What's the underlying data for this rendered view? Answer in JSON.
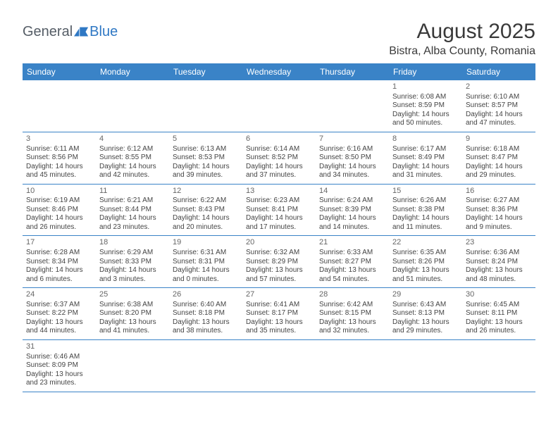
{
  "logo": {
    "text1": "General",
    "text2": "Blue"
  },
  "title": "August 2025",
  "location": "Bistra, Alba County, Romania",
  "header_bg": "#3a83c7",
  "day_names": [
    "Sunday",
    "Monday",
    "Tuesday",
    "Wednesday",
    "Thursday",
    "Friday",
    "Saturday"
  ],
  "weeks": [
    [
      null,
      null,
      null,
      null,
      null,
      {
        "d": "1",
        "sr": "6:08 AM",
        "ss": "8:59 PM",
        "dl": "14 hours and 50 minutes."
      },
      {
        "d": "2",
        "sr": "6:10 AM",
        "ss": "8:57 PM",
        "dl": "14 hours and 47 minutes."
      }
    ],
    [
      {
        "d": "3",
        "sr": "6:11 AM",
        "ss": "8:56 PM",
        "dl": "14 hours and 45 minutes."
      },
      {
        "d": "4",
        "sr": "6:12 AM",
        "ss": "8:55 PM",
        "dl": "14 hours and 42 minutes."
      },
      {
        "d": "5",
        "sr": "6:13 AM",
        "ss": "8:53 PM",
        "dl": "14 hours and 39 minutes."
      },
      {
        "d": "6",
        "sr": "6:14 AM",
        "ss": "8:52 PM",
        "dl": "14 hours and 37 minutes."
      },
      {
        "d": "7",
        "sr": "6:16 AM",
        "ss": "8:50 PM",
        "dl": "14 hours and 34 minutes."
      },
      {
        "d": "8",
        "sr": "6:17 AM",
        "ss": "8:49 PM",
        "dl": "14 hours and 31 minutes."
      },
      {
        "d": "9",
        "sr": "6:18 AM",
        "ss": "8:47 PM",
        "dl": "14 hours and 29 minutes."
      }
    ],
    [
      {
        "d": "10",
        "sr": "6:19 AM",
        "ss": "8:46 PM",
        "dl": "14 hours and 26 minutes."
      },
      {
        "d": "11",
        "sr": "6:21 AM",
        "ss": "8:44 PM",
        "dl": "14 hours and 23 minutes."
      },
      {
        "d": "12",
        "sr": "6:22 AM",
        "ss": "8:43 PM",
        "dl": "14 hours and 20 minutes."
      },
      {
        "d": "13",
        "sr": "6:23 AM",
        "ss": "8:41 PM",
        "dl": "14 hours and 17 minutes."
      },
      {
        "d": "14",
        "sr": "6:24 AM",
        "ss": "8:39 PM",
        "dl": "14 hours and 14 minutes."
      },
      {
        "d": "15",
        "sr": "6:26 AM",
        "ss": "8:38 PM",
        "dl": "14 hours and 11 minutes."
      },
      {
        "d": "16",
        "sr": "6:27 AM",
        "ss": "8:36 PM",
        "dl": "14 hours and 9 minutes."
      }
    ],
    [
      {
        "d": "17",
        "sr": "6:28 AM",
        "ss": "8:34 PM",
        "dl": "14 hours and 6 minutes."
      },
      {
        "d": "18",
        "sr": "6:29 AM",
        "ss": "8:33 PM",
        "dl": "14 hours and 3 minutes."
      },
      {
        "d": "19",
        "sr": "6:31 AM",
        "ss": "8:31 PM",
        "dl": "14 hours and 0 minutes."
      },
      {
        "d": "20",
        "sr": "6:32 AM",
        "ss": "8:29 PM",
        "dl": "13 hours and 57 minutes."
      },
      {
        "d": "21",
        "sr": "6:33 AM",
        "ss": "8:27 PM",
        "dl": "13 hours and 54 minutes."
      },
      {
        "d": "22",
        "sr": "6:35 AM",
        "ss": "8:26 PM",
        "dl": "13 hours and 51 minutes."
      },
      {
        "d": "23",
        "sr": "6:36 AM",
        "ss": "8:24 PM",
        "dl": "13 hours and 48 minutes."
      }
    ],
    [
      {
        "d": "24",
        "sr": "6:37 AM",
        "ss": "8:22 PM",
        "dl": "13 hours and 44 minutes."
      },
      {
        "d": "25",
        "sr": "6:38 AM",
        "ss": "8:20 PM",
        "dl": "13 hours and 41 minutes."
      },
      {
        "d": "26",
        "sr": "6:40 AM",
        "ss": "8:18 PM",
        "dl": "13 hours and 38 minutes."
      },
      {
        "d": "27",
        "sr": "6:41 AM",
        "ss": "8:17 PM",
        "dl": "13 hours and 35 minutes."
      },
      {
        "d": "28",
        "sr": "6:42 AM",
        "ss": "8:15 PM",
        "dl": "13 hours and 32 minutes."
      },
      {
        "d": "29",
        "sr": "6:43 AM",
        "ss": "8:13 PM",
        "dl": "13 hours and 29 minutes."
      },
      {
        "d": "30",
        "sr": "6:45 AM",
        "ss": "8:11 PM",
        "dl": "13 hours and 26 minutes."
      }
    ],
    [
      {
        "d": "31",
        "sr": "6:46 AM",
        "ss": "8:09 PM",
        "dl": "13 hours and 23 minutes."
      },
      null,
      null,
      null,
      null,
      null,
      null
    ]
  ],
  "labels": {
    "sunrise": "Sunrise:",
    "sunset": "Sunset:",
    "daylight": "Daylight:"
  }
}
